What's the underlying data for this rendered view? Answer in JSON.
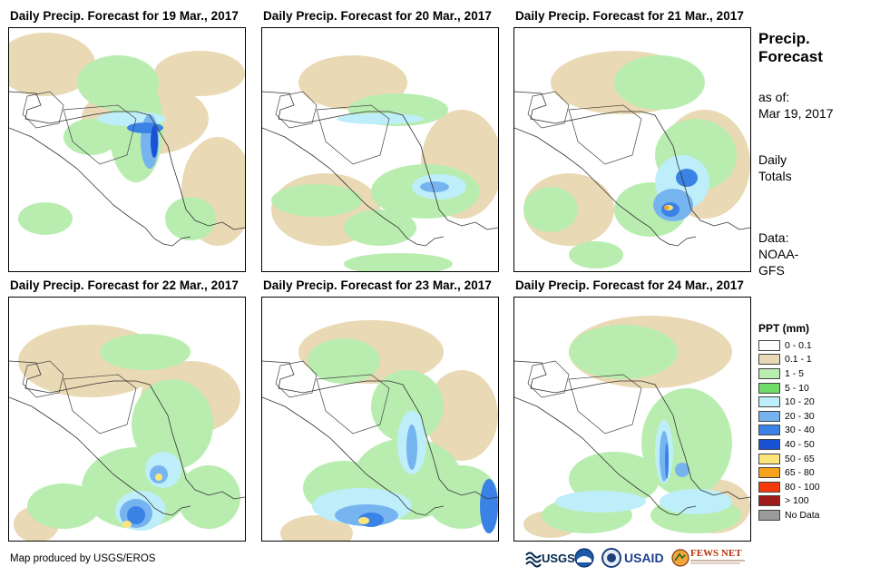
{
  "side": {
    "title_line1": "Precip.",
    "title_line2": "Forecast",
    "asof_label": "as of:",
    "asof_date": "Mar 19, 2017",
    "period_line1": "Daily",
    "period_line2": "Totals",
    "source_line1": "Data:",
    "source_line2": "NOAA-",
    "source_line3": "GFS"
  },
  "panels": [
    {
      "title": "Daily Precip. Forecast for 19 Mar., 2017"
    },
    {
      "title": "Daily Precip. Forecast for 20 Mar., 2017"
    },
    {
      "title": "Daily Precip. Forecast for 21 Mar., 2017"
    },
    {
      "title": "Daily Precip. Forecast for 22 Mar., 2017"
    },
    {
      "title": "Daily Precip. Forecast for 23 Mar., 2017"
    },
    {
      "title": "Daily Precip. Forecast for 24 Mar., 2017"
    }
  ],
  "legend": {
    "title": "PPT (mm)",
    "items": [
      {
        "label": "0 - 0.1",
        "color": "#ffffff"
      },
      {
        "label": "0.1 - 1",
        "color": "#e9d9b4"
      },
      {
        "label": "1 - 5",
        "color": "#b9edb0"
      },
      {
        "label": "5 - 10",
        "color": "#6fdc6a"
      },
      {
        "label": "10 - 20",
        "color": "#bdeefa"
      },
      {
        "label": "20 - 30",
        "color": "#76b4f0"
      },
      {
        "label": "30 - 40",
        "color": "#3a82e6"
      },
      {
        "label": "40 - 50",
        "color": "#1a52d6"
      },
      {
        "label": "50 - 65",
        "color": "#fde57e"
      },
      {
        "label": "65 - 80",
        "color": "#f6a21c"
      },
      {
        "label": "80 - 100",
        "color": "#f43a0a"
      },
      {
        "label": "> 100",
        "color": "#a01a1a"
      },
      {
        "label": "No Data",
        "color": "#9a9a9a"
      }
    ]
  },
  "footer": {
    "credit": "Map produced by USGS/EROS",
    "logo_usgs": "USGS",
    "logo_usaid": "USAID",
    "logo_fewsnet": "FEWS NET"
  }
}
